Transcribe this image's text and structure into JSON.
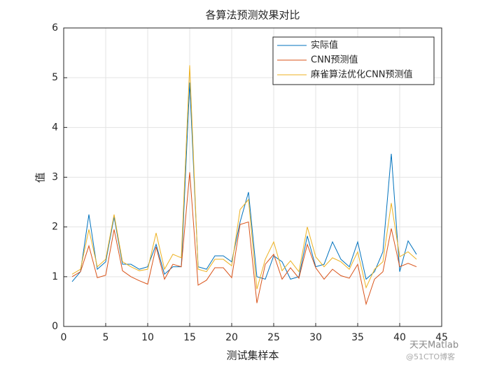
{
  "chart_data": {
    "type": "line",
    "title": "各算法预测效果对比",
    "xlabel": "测试集样本",
    "ylabel": "值",
    "x": [
      1,
      2,
      3,
      4,
      5,
      6,
      7,
      8,
      9,
      10,
      11,
      12,
      13,
      14,
      15,
      16,
      17,
      18,
      19,
      20,
      21,
      22,
      23,
      24,
      25,
      26,
      27,
      28,
      29,
      30,
      31,
      32,
      33,
      34,
      35,
      36,
      37,
      38,
      39,
      40,
      41,
      42
    ],
    "series": [
      {
        "name": "实际值",
        "color": "#0072BD",
        "values": [
          0.9,
          1.1,
          2.25,
          1.15,
          1.3,
          2.2,
          1.25,
          1.25,
          1.15,
          1.2,
          1.65,
          1.05,
          1.2,
          1.2,
          4.9,
          1.2,
          1.15,
          1.42,
          1.42,
          1.3,
          2.1,
          2.7,
          1.0,
          0.95,
          1.42,
          1.3,
          0.95,
          1.0,
          1.82,
          1.2,
          1.25,
          1.7,
          1.35,
          1.2,
          1.7,
          0.95,
          1.1,
          1.5,
          3.47,
          1.1,
          1.72,
          1.45
        ]
      },
      {
        "name": "CNN预测值",
        "color": "#D95319",
        "values": [
          1.0,
          1.1,
          1.62,
          0.98,
          1.03,
          1.95,
          1.12,
          1.0,
          0.92,
          0.85,
          1.6,
          0.95,
          1.25,
          1.2,
          3.1,
          0.83,
          0.93,
          1.18,
          1.18,
          0.98,
          2.05,
          2.1,
          0.47,
          1.25,
          1.45,
          0.95,
          1.18,
          0.97,
          1.65,
          1.18,
          0.95,
          1.15,
          1.02,
          0.97,
          1.25,
          0.45,
          0.95,
          1.1,
          1.97,
          1.2,
          1.27,
          1.2
        ]
      },
      {
        "name": "麻雀算法优化CNN预测值",
        "color": "#EDB120",
        "values": [
          1.05,
          1.15,
          1.95,
          1.2,
          1.35,
          2.25,
          1.3,
          1.2,
          1.12,
          1.15,
          1.88,
          1.15,
          1.45,
          1.38,
          5.25,
          1.15,
          1.1,
          1.35,
          1.35,
          1.22,
          2.35,
          2.55,
          0.75,
          1.35,
          1.7,
          1.12,
          1.32,
          1.1,
          2.0,
          1.4,
          1.2,
          1.38,
          1.3,
          1.15,
          1.5,
          0.78,
          1.15,
          1.3,
          2.48,
          1.4,
          1.5,
          1.35
        ]
      }
    ],
    "xlim": [
      0,
      45
    ],
    "xticks": [
      0,
      5,
      10,
      15,
      20,
      25,
      30,
      35,
      40,
      45
    ],
    "ylim": [
      0,
      6
    ],
    "yticks": [
      0,
      1,
      2,
      3,
      4,
      5,
      6
    ],
    "grid": true,
    "legend": "upper right",
    "watermark": [
      "天天Matlab",
      "@51CTO博客"
    ]
  }
}
